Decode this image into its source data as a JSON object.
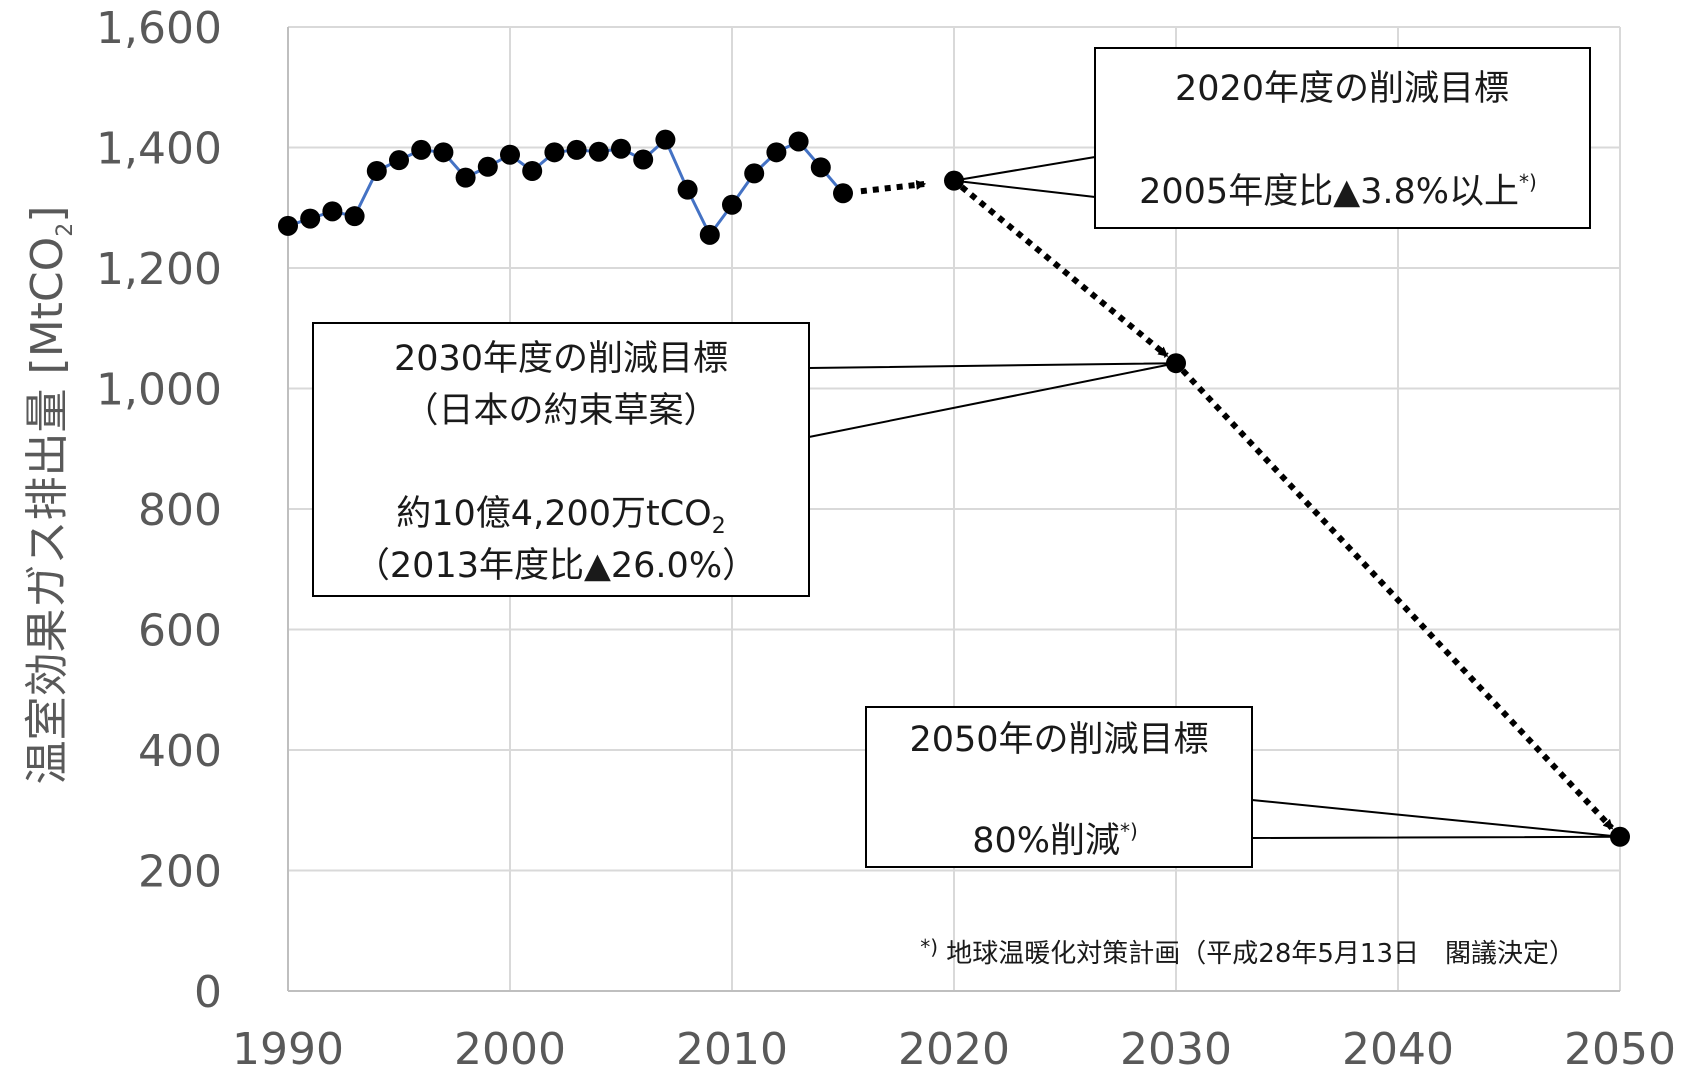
{
  "chart_data": {
    "type": "line",
    "ylabel": "温室効果ガス排出量 [MtCO",
    "ylabel_sub": "2",
    "ylabel_close": "]",
    "xlim": [
      1990,
      2050
    ],
    "ylim": [
      0,
      1600
    ],
    "x_ticks": [
      1990,
      2000,
      2010,
      2020,
      2030,
      2040,
      2050
    ],
    "y_ticks": [
      0,
      200,
      400,
      600,
      800,
      1000,
      1200,
      1400,
      1600
    ],
    "x_tick_labels": [
      "1990",
      "2000",
      "2010",
      "2020",
      "2030",
      "2040",
      "2050"
    ],
    "y_tick_labels": [
      "0",
      "200",
      "400",
      "600",
      "800",
      "1,000",
      "1,200",
      "1,400",
      "1,600"
    ],
    "grid": true,
    "series": [
      {
        "style": "solid-line-with-markers",
        "line_color": "#4472c4",
        "marker_color": "#000000",
        "points": [
          [
            1990,
            1270
          ],
          [
            1991,
            1282
          ],
          [
            1992,
            1294
          ],
          [
            1993,
            1286
          ],
          [
            1994,
            1361
          ],
          [
            1995,
            1379
          ],
          [
            1996,
            1396
          ],
          [
            1997,
            1392
          ],
          [
            1998,
            1350
          ],
          [
            1999,
            1368
          ],
          [
            2000,
            1388
          ],
          [
            2001,
            1361
          ],
          [
            2002,
            1392
          ],
          [
            2003,
            1396
          ],
          [
            2004,
            1393
          ],
          [
            2005,
            1398
          ],
          [
            2006,
            1380
          ],
          [
            2007,
            1413
          ],
          [
            2008,
            1330
          ],
          [
            2009,
            1255
          ],
          [
            2010,
            1305
          ],
          [
            2011,
            1357
          ],
          [
            2012,
            1392
          ],
          [
            2013,
            1410
          ],
          [
            2014,
            1367
          ],
          [
            2015,
            1324
          ]
        ]
      },
      {
        "style": "dotted-arrows",
        "line_color": "#000000",
        "points": [
          [
            2015,
            1324
          ],
          [
            2020,
            1345
          ],
          [
            2030,
            1042
          ],
          [
            2050,
            256
          ]
        ]
      }
    ],
    "annotations": [
      {
        "id": "target-2020",
        "line1": "2020年度の削減目標",
        "line2": "2005年度比▲3.8%以上",
        "line2_sup": "*)",
        "anchor": [
          2020,
          1345
        ]
      },
      {
        "id": "target-2030",
        "line1": "2030年度の削減目標",
        "line2": "（日本の約束草案）",
        "line3": "約10億4,200万tCO",
        "line3_sub": "2",
        "line4": "（2013年度比▲26.0%）",
        "anchor": [
          2030,
          1042
        ]
      },
      {
        "id": "target-2050",
        "line1": "2050年の削減目標",
        "line2": "80%削減",
        "line2_sup": "*)",
        "anchor": [
          2050,
          256
        ]
      }
    ],
    "footnote_mark": "*)",
    "footnote": "地球温暖化対策計画（平成28年5月13日　閣議決定）"
  }
}
